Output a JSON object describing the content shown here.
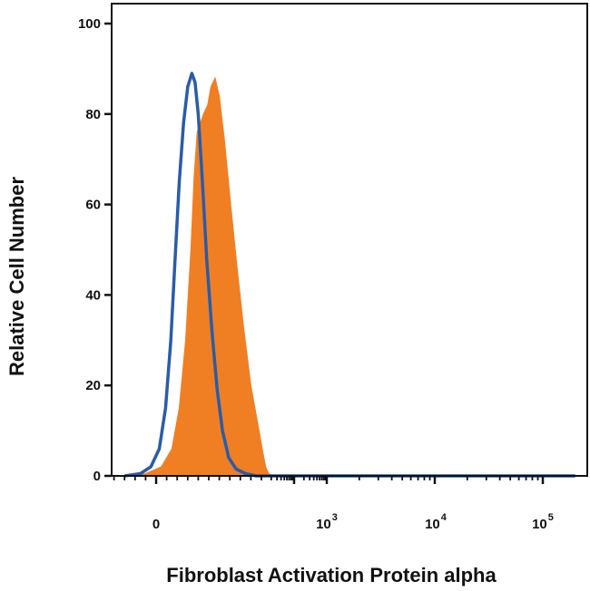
{
  "chart_data": {
    "type": "area",
    "xlabel": "Fibroblast Activation Protein alpha",
    "ylabel": "Relative Cell Number",
    "x_scale": "biexponential",
    "ylim": [
      0,
      100
    ],
    "y_ticks": [
      0,
      20,
      40,
      60,
      80,
      100
    ],
    "x_tick_labels": [
      {
        "base": "0",
        "exp": ""
      },
      {
        "base": "10",
        "exp": "3"
      },
      {
        "base": "10",
        "exp": "4"
      },
      {
        "base": "10",
        "exp": "5"
      }
    ],
    "grid": false,
    "legend": "none",
    "series": [
      {
        "style": "filled",
        "color": "#f07f23",
        "points": [
          [
            -0.3,
            0
          ],
          [
            -0.1,
            0.5
          ],
          [
            0.05,
            2
          ],
          [
            0.15,
            6
          ],
          [
            0.22,
            15
          ],
          [
            0.28,
            30
          ],
          [
            0.33,
            50
          ],
          [
            0.36,
            66
          ],
          [
            0.39,
            76
          ],
          [
            0.42,
            78
          ],
          [
            0.45,
            80
          ],
          [
            0.49,
            82
          ],
          [
            0.52,
            86
          ],
          [
            0.56,
            88
          ],
          [
            0.6,
            84
          ],
          [
            0.65,
            74
          ],
          [
            0.7,
            62
          ],
          [
            0.76,
            48
          ],
          [
            0.83,
            33
          ],
          [
            0.9,
            20
          ],
          [
            0.97,
            11
          ],
          [
            1.05,
            5
          ],
          [
            1.13,
            2
          ],
          [
            1.22,
            0.5
          ],
          [
            1.35,
            0
          ],
          [
            5.3,
            0
          ]
        ]
      },
      {
        "style": "line",
        "color": "#2a5ca8",
        "points": [
          [
            -0.3,
            0
          ],
          [
            -0.15,
            0.5
          ],
          [
            -0.05,
            2
          ],
          [
            0.03,
            6
          ],
          [
            0.09,
            15
          ],
          [
            0.14,
            30
          ],
          [
            0.18,
            48
          ],
          [
            0.22,
            65
          ],
          [
            0.26,
            78
          ],
          [
            0.3,
            86
          ],
          [
            0.34,
            89
          ],
          [
            0.37,
            87
          ],
          [
            0.4,
            80
          ],
          [
            0.44,
            65
          ],
          [
            0.48,
            48
          ],
          [
            0.53,
            32
          ],
          [
            0.58,
            19
          ],
          [
            0.63,
            10
          ],
          [
            0.69,
            4
          ],
          [
            0.76,
            1.5
          ],
          [
            0.85,
            0.5
          ],
          [
            0.95,
            0
          ],
          [
            5.3,
            0
          ]
        ]
      }
    ]
  }
}
